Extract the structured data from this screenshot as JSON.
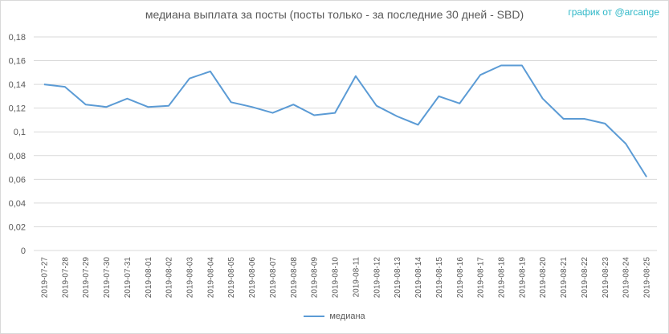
{
  "title": "медиана выплата за посты  (посты только - за последние 30 дней - SBD)",
  "credit": "график от @arcange",
  "colors": {
    "series": "#5b9bd5",
    "grid": "#d9d9d9",
    "axis_text": "#595959",
    "credit": "#2fb8c8"
  },
  "chart_data": {
    "type": "line",
    "title": "медиана выплата за посты  (посты только - за последние 30 дней - SBD)",
    "xlabel": "",
    "ylabel": "",
    "ylim": [
      0,
      0.18
    ],
    "y_ticks": [
      "0",
      "0,02",
      "0,04",
      "0,06",
      "0,08",
      "0,1",
      "0,12",
      "0,14",
      "0,16",
      "0,18"
    ],
    "grid": true,
    "legend": "bottom",
    "x": [
      "2019-07-27",
      "2019-07-28",
      "2019-07-29",
      "2019-07-30",
      "2019-07-31",
      "2019-08-01",
      "2019-08-02",
      "2019-08-03",
      "2019-08-04",
      "2019-08-05",
      "2019-08-06",
      "2019-08-07",
      "2019-08-08",
      "2019-08-09",
      "2019-08-10",
      "2019-08-11",
      "2019-08-12",
      "2019-08-13",
      "2019-08-14",
      "2019-08-15",
      "2019-08-16",
      "2019-08-17",
      "2019-08-18",
      "2019-08-19",
      "2019-08-20",
      "2019-08-21",
      "2019-08-22",
      "2019-08-23",
      "2019-08-24",
      "2019-08-25"
    ],
    "series": [
      {
        "name": "медиана",
        "values": [
          0.14,
          0.138,
          0.123,
          0.121,
          0.128,
          0.121,
          0.122,
          0.145,
          0.151,
          0.125,
          0.121,
          0.116,
          0.123,
          0.114,
          0.116,
          0.147,
          0.122,
          0.113,
          0.106,
          0.13,
          0.124,
          0.148,
          0.156,
          0.156,
          0.128,
          0.111,
          0.111,
          0.107,
          0.09,
          0.062
        ]
      }
    ]
  }
}
